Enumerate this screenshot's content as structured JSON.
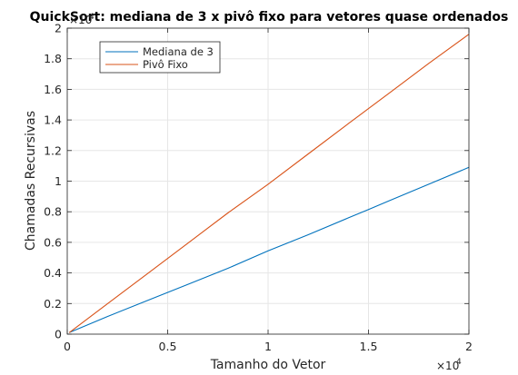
{
  "chart_data": {
    "type": "line",
    "title": "QuickSort: mediana de 3 x pivô fixo para vetores quase ordenados",
    "xlabel": "Tamanho do Vetor",
    "ylabel": "Chamadas Recursivas",
    "x_multiplier_label": "×10",
    "x_multiplier_exp": "4",
    "y_multiplier_label": "×10",
    "y_multiplier_exp": "4",
    "xlim": [
      0,
      20000
    ],
    "ylim": [
      0,
      20000
    ],
    "grid": true,
    "legend_position": "top-left",
    "x_ticks": [
      0,
      5000,
      10000,
      15000,
      20000
    ],
    "x_tick_labels": [
      "0",
      "0.5",
      "1",
      "1.5",
      "2"
    ],
    "y_ticks": [
      0,
      2000,
      4000,
      6000,
      8000,
      10000,
      12000,
      14000,
      16000,
      18000,
      20000
    ],
    "y_tick_labels": [
      "0",
      "0.2",
      "0.4",
      "0.6",
      "0.8",
      "1",
      "1.2",
      "1.4",
      "1.6",
      "1.8",
      "2"
    ],
    "x": [
      100,
      2000,
      4000,
      6000,
      8000,
      10000,
      12000,
      14000,
      15000,
      16000,
      18000,
      20000
    ],
    "series": [
      {
        "name": "Mediana de 3",
        "color": "#0072bd",
        "values": [
          100,
          1150,
          2200,
          3250,
          4300,
          5450,
          6500,
          7600,
          8150,
          8700,
          9800,
          10900
        ]
      },
      {
        "name": "Pivô Fixo",
        "color": "#d95319",
        "values": [
          100,
          1980,
          3960,
          5940,
          7920,
          9800,
          11780,
          13760,
          14740,
          15720,
          17700,
          19600
        ]
      }
    ]
  }
}
